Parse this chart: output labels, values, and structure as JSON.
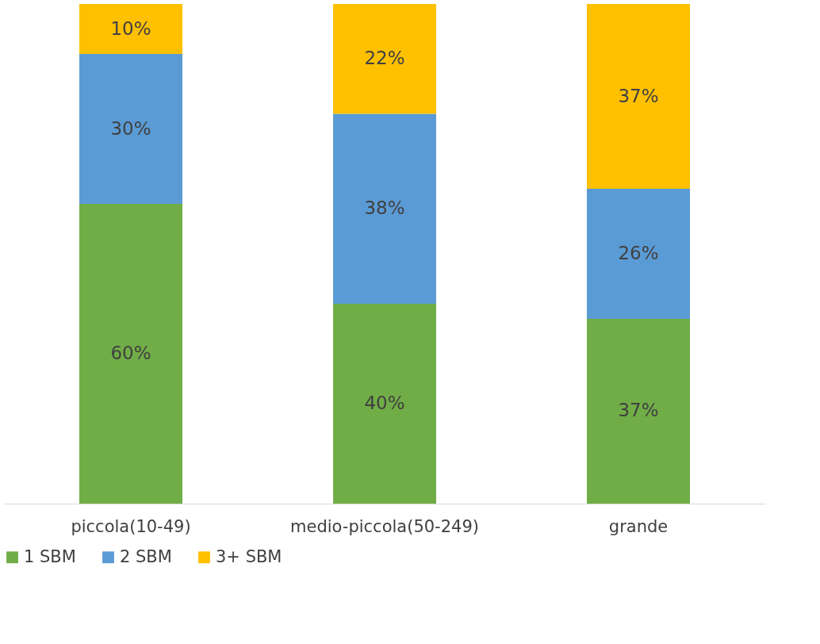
{
  "chart_data": {
    "type": "bar",
    "stacked": true,
    "categories": [
      "piccola(10-49)",
      "medio-piccola(50-249)",
      "grande"
    ],
    "series": [
      {
        "name": "1 SBM",
        "color": "#70ad47",
        "values": [
          60,
          40,
          37
        ],
        "value_labels": [
          "60%",
          "40%",
          "37%"
        ]
      },
      {
        "name": "2 SBM",
        "color": "#5b9bd5",
        "values": [
          30,
          38,
          26
        ],
        "value_labels": [
          "30%",
          "38%",
          "26%"
        ]
      },
      {
        "name": "3+ SBM",
        "color": "#ffc000",
        "values": [
          10,
          22,
          37
        ],
        "value_labels": [
          "10%",
          "22%",
          "37%"
        ]
      }
    ],
    "ylim": [
      0,
      100
    ],
    "tick_labels": "x",
    "grid": false,
    "legend": "bottom"
  }
}
